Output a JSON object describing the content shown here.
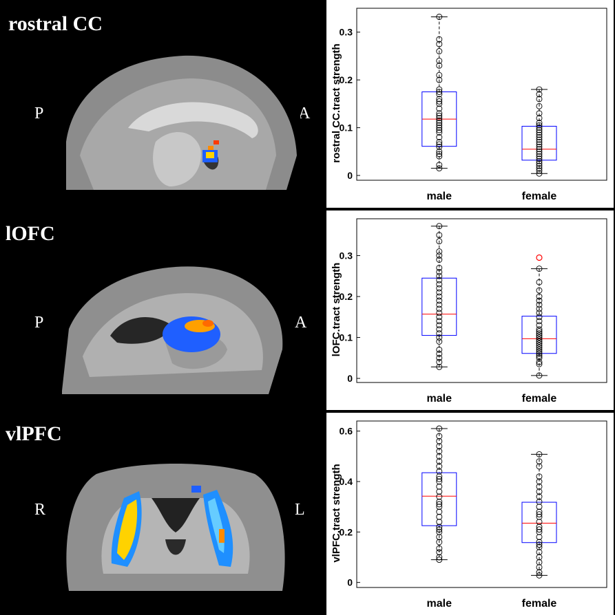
{
  "panels": [
    {
      "title": "rostral CC",
      "orient_left": "P",
      "orient_right": "A",
      "chart": {
        "type": "box",
        "ylabel": "rostral CC.tract strength",
        "ylim": [
          -0.01,
          0.35
        ],
        "yticks": [
          "0",
          "0.1",
          "0.2",
          "0.3"
        ],
        "ytick_values": [
          0,
          0.1,
          0.2,
          0.3
        ],
        "categories": [
          "male",
          "female"
        ],
        "boxes": [
          {
            "q1": 0.061,
            "median": 0.118,
            "q3": 0.175,
            "whisker_low": 0.015,
            "whisker_high": 0.332,
            "points": [
              0.015,
              0.022,
              0.04,
              0.045,
              0.05,
              0.06,
              0.065,
              0.07,
              0.08,
              0.09,
              0.095,
              0.1,
              0.105,
              0.11,
              0.115,
              0.12,
              0.125,
              0.13,
              0.14,
              0.15,
              0.155,
              0.16,
              0.17,
              0.175,
              0.18,
              0.2,
              0.21,
              0.23,
              0.24,
              0.26,
              0.275,
              0.285,
              0.332
            ]
          },
          {
            "q1": 0.032,
            "median": 0.055,
            "q3": 0.103,
            "whisker_low": 0.004,
            "whisker_high": 0.18,
            "points": [
              0.004,
              0.01,
              0.015,
              0.02,
              0.025,
              0.03,
              0.035,
              0.04,
              0.045,
              0.05,
              0.055,
              0.06,
              0.065,
              0.07,
              0.075,
              0.08,
              0.085,
              0.09,
              0.095,
              0.1,
              0.105,
              0.11,
              0.12,
              0.13,
              0.145,
              0.16,
              0.17,
              0.18
            ]
          }
        ]
      }
    },
    {
      "title": "lOFC",
      "orient_left": "P",
      "orient_right": "A",
      "chart": {
        "type": "box",
        "ylabel": "lOFC.tract strength",
        "ylim": [
          -0.01,
          0.39
        ],
        "yticks": [
          "0",
          "0.1",
          "0.2",
          "0.3"
        ],
        "ytick_values": [
          0,
          0.1,
          0.2,
          0.3
        ],
        "categories": [
          "male",
          "female"
        ],
        "boxes": [
          {
            "q1": 0.105,
            "median": 0.157,
            "q3": 0.245,
            "whisker_low": 0.028,
            "whisker_high": 0.372,
            "points": [
              0.028,
              0.04,
              0.05,
              0.06,
              0.07,
              0.09,
              0.1,
              0.11,
              0.12,
              0.13,
              0.14,
              0.15,
              0.16,
              0.17,
              0.18,
              0.19,
              0.2,
              0.21,
              0.22,
              0.23,
              0.24,
              0.25,
              0.26,
              0.27,
              0.29,
              0.3,
              0.31,
              0.335,
              0.35,
              0.372
            ]
          },
          {
            "q1": 0.061,
            "median": 0.097,
            "q3": 0.152,
            "whisker_low": 0.007,
            "whisker_high": 0.268,
            "outliers": [
              0.295
            ],
            "points": [
              0.007,
              0.035,
              0.04,
              0.05,
              0.055,
              0.06,
              0.065,
              0.07,
              0.075,
              0.08,
              0.085,
              0.09,
              0.095,
              0.1,
              0.105,
              0.11,
              0.115,
              0.12,
              0.13,
              0.14,
              0.15,
              0.16,
              0.17,
              0.18,
              0.19,
              0.2,
              0.215,
              0.235,
              0.268
            ]
          }
        ]
      }
    },
    {
      "title": "vlPFC",
      "orient_left": "R",
      "orient_right": "L",
      "chart": {
        "type": "box",
        "ylabel": "vlPFC.tract strength",
        "ylim": [
          -0.02,
          0.64
        ],
        "yticks": [
          "0",
          "0.2",
          "0.4",
          "0.6"
        ],
        "ytick_values": [
          0,
          0.2,
          0.4,
          0.6
        ],
        "categories": [
          "male",
          "female"
        ],
        "boxes": [
          {
            "q1": 0.225,
            "median": 0.342,
            "q3": 0.435,
            "whisker_low": 0.09,
            "whisker_high": 0.61,
            "points": [
              0.09,
              0.1,
              0.12,
              0.135,
              0.16,
              0.18,
              0.2,
              0.21,
              0.22,
              0.24,
              0.26,
              0.28,
              0.3,
              0.31,
              0.32,
              0.34,
              0.36,
              0.38,
              0.4,
              0.41,
              0.42,
              0.44,
              0.46,
              0.48,
              0.5,
              0.52,
              0.54,
              0.56,
              0.58,
              0.61
            ]
          },
          {
            "q1": 0.158,
            "median": 0.235,
            "q3": 0.318,
            "whisker_low": 0.028,
            "whisker_high": 0.508,
            "points": [
              0.028,
              0.04,
              0.06,
              0.08,
              0.1,
              0.12,
              0.14,
              0.15,
              0.16,
              0.18,
              0.2,
              0.21,
              0.22,
              0.24,
              0.26,
              0.27,
              0.28,
              0.3,
              0.32,
              0.34,
              0.36,
              0.38,
              0.4,
              0.42,
              0.46,
              0.48,
              0.508
            ]
          }
        ]
      }
    }
  ],
  "colors": {
    "box": "#0000ff",
    "median": "#ff0000",
    "whisker": "#000000",
    "point": "#000000",
    "outlier": "#ff0000",
    "brain_gray": "#9a9a9a",
    "activation_blue": "#1f5fff",
    "activation_yellow": "#ffd200",
    "activation_orange": "#ff6a00"
  }
}
